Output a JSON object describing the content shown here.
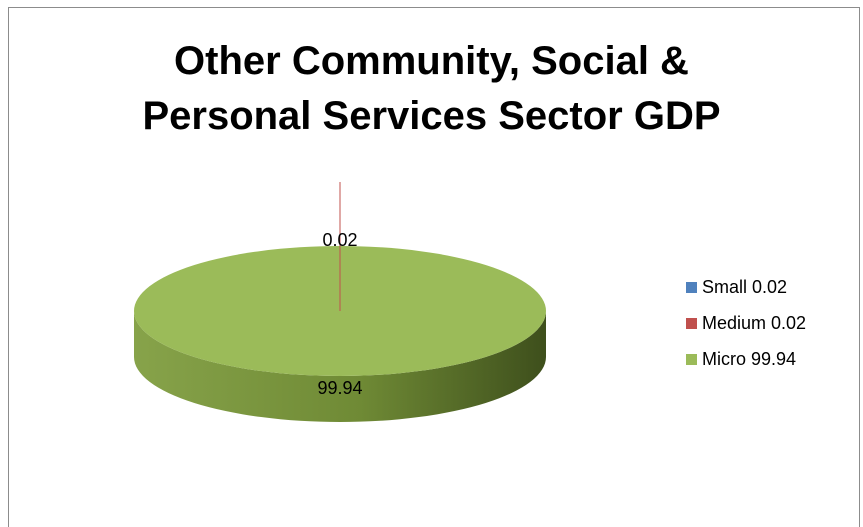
{
  "chart_data": {
    "type": "pie",
    "title_lines": [
      "Other Community, Social &",
      "Personal Services Sector GDP"
    ],
    "slices": [
      {
        "name": "Small",
        "value": 0.02,
        "color": "#4f81bd",
        "label": "0.02"
      },
      {
        "name": "Medium",
        "value": 0.02,
        "color": "#c0504d",
        "label": "0.02"
      },
      {
        "name": "Micro",
        "value": 99.94,
        "color": "#9bbb59",
        "label": "99.94"
      }
    ],
    "legend": [
      {
        "text": "Small 0.02",
        "color": "#4f81bd"
      },
      {
        "text": "Medium 0.02",
        "color": "#c0504d"
      },
      {
        "text": "Micro 99.94",
        "color": "#9bbb59"
      }
    ],
    "legend_position": "right",
    "style": "3d"
  }
}
